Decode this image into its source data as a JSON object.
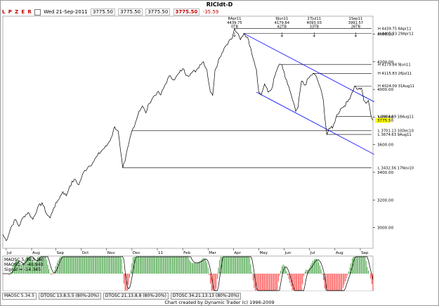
{
  "window": {
    "title": "RICIdt-D",
    "footer": "Chart created by Dynamic Trader  (c)  1996-2009"
  },
  "toolbar": {
    "buttons": [
      "L",
      "P",
      "Z",
      "E",
      "R"
    ],
    "date": "Wed 21-Sep-2011",
    "values": [
      "3775.50",
      "3775.50",
      "3775.50"
    ],
    "close": "3775.50",
    "change": "-35.59"
  },
  "tabs": [
    "MAOSC 5.34.5",
    "DTOSC 13.8.5.5 (80%-20%)",
    "DTOSC 21.13.8.8 (80%-20%)",
    "DTOSC 34.21.13.13 (80%-20%)"
  ],
  "colors": {
    "price": "#000000",
    "channel": "#0000ff",
    "last_price_bg": "#ffff00",
    "osc_up": "#008000",
    "osc_down": "#ff0000",
    "signal": "#000000"
  },
  "chart_data": {
    "type": "line",
    "title": "RICIdt-D",
    "ylim": [
      2850,
      4530
    ],
    "y_ticks": [
      3000,
      3200,
      3400,
      3600,
      3800,
      4000,
      4200,
      4400
    ],
    "y_tick_labels": [
      "3000.00",
      "3200.00",
      "3400.00",
      "3600.00",
      "3800.00",
      "4000.00",
      "4200.00",
      "4400.00"
    ],
    "last_price_label": "3775.50",
    "month_labels": [
      "Jul",
      "Aug",
      "Sep",
      "Oct",
      "Nov",
      "Dec",
      "11",
      "Feb",
      "Mar",
      "Apr",
      "May",
      "Jun",
      "Jul",
      "Aug",
      "Sep"
    ],
    "month_idx": [
      3,
      25,
      46,
      68,
      90,
      112,
      134,
      156,
      178,
      200,
      222,
      244,
      266,
      288,
      310
    ],
    "n_bars": 322,
    "price_pts": [
      [
        0,
        2950
      ],
      [
        3,
        2905
      ],
      [
        7,
        3000
      ],
      [
        11,
        3060
      ],
      [
        14,
        3010
      ],
      [
        18,
        3080
      ],
      [
        22,
        3110
      ],
      [
        26,
        3060
      ],
      [
        30,
        3140
      ],
      [
        34,
        3180
      ],
      [
        38,
        3100
      ],
      [
        41,
        3070
      ],
      [
        44,
        3140
      ],
      [
        48,
        3200
      ],
      [
        52,
        3260
      ],
      [
        55,
        3230
      ],
      [
        58,
        3300
      ],
      [
        62,
        3350
      ],
      [
        66,
        3310
      ],
      [
        70,
        3400
      ],
      [
        74,
        3440
      ],
      [
        78,
        3470
      ],
      [
        82,
        3520
      ],
      [
        86,
        3560
      ],
      [
        90,
        3590
      ],
      [
        94,
        3650
      ],
      [
        97,
        3730
      ],
      [
        100,
        3700
      ],
      [
        102,
        3560
      ],
      [
        104,
        3432
      ],
      [
        106,
        3480
      ],
      [
        109,
        3600
      ],
      [
        112,
        3700
      ],
      [
        115,
        3760
      ],
      [
        118,
        3840
      ],
      [
        121,
        3880
      ],
      [
        124,
        3830
      ],
      [
        127,
        3900
      ],
      [
        130,
        3940
      ],
      [
        134,
        3980
      ],
      [
        137,
        3960
      ],
      [
        141,
        4040
      ],
      [
        145,
        4100
      ],
      [
        149,
        4070
      ],
      [
        153,
        4120
      ],
      [
        156,
        4150
      ],
      [
        160,
        4100
      ],
      [
        164,
        4120
      ],
      [
        168,
        4140
      ],
      [
        171,
        4180
      ],
      [
        174,
        4200
      ],
      [
        177,
        4140
      ],
      [
        180,
        3980
      ],
      [
        182,
        3955
      ],
      [
        184,
        4140
      ],
      [
        188,
        4230
      ],
      [
        192,
        4300
      ],
      [
        196,
        4350
      ],
      [
        199,
        4370
      ],
      [
        201,
        4439
      ],
      [
        203,
        4410
      ],
      [
        206,
        4360
      ],
      [
        209,
        4405
      ],
      [
        212,
        4380
      ],
      [
        215,
        4300
      ],
      [
        218,
        4200
      ],
      [
        220,
        4140
      ],
      [
        222,
        3980
      ],
      [
        224,
        3960
      ],
      [
        227,
        4040
      ],
      [
        230,
        3980
      ],
      [
        233,
        4000
      ],
      [
        236,
        4100
      ],
      [
        239,
        4170
      ],
      [
        242,
        4180
      ],
      [
        245,
        4080
      ],
      [
        248,
        4020
      ],
      [
        251,
        3930
      ],
      [
        254,
        3840
      ],
      [
        256,
        3870
      ],
      [
        259,
        4060
      ],
      [
        262,
        4030
      ],
      [
        265,
        4080
      ],
      [
        269,
        4115
      ],
      [
        272,
        4090
      ],
      [
        275,
        4020
      ],
      [
        278,
        3920
      ],
      [
        280,
        3740
      ],
      [
        281,
        3674
      ],
      [
        283,
        3720
      ],
      [
        286,
        3720
      ],
      [
        289,
        3800
      ],
      [
        293,
        3860
      ],
      [
        296,
        3880
      ],
      [
        299,
        3910
      ],
      [
        302,
        3960
      ],
      [
        305,
        4024
      ],
      [
        308,
        4000
      ],
      [
        311,
        4010
      ],
      [
        313,
        3920
      ],
      [
        315,
        3900
      ],
      [
        317,
        3920
      ],
      [
        319,
        3820
      ],
      [
        321,
        3776
      ]
    ],
    "horizontal_levels": [
      {
        "label": "H 4439.75 8Apr11",
        "value": 4439.75,
        "start": 200
      },
      {
        "label": "H 4405.33 29Apr11",
        "value": 4405.33,
        "start": 209
      },
      {
        "label": "H 4179.84 9Jun11",
        "value": 4179.84,
        "start": 242
      },
      {
        "label": "H 4115.83 26Jul11",
        "value": 4115.83,
        "start": 269
      },
      {
        "label": "H 4024.09 31Aug11",
        "value": 4024.09,
        "start": 305
      },
      {
        "label": "L 3804.69 18Aug11",
        "value": 3804.69,
        "start": 289
      },
      {
        "label": "L 3701.13 10Dec10",
        "value": 3701.13,
        "start": 112
      },
      {
        "label": "L 3674.63 9Aug11",
        "value": 3674.63,
        "start": 281
      },
      {
        "label": "L 3432.56 17Nov10",
        "value": 3432.56,
        "start": 104
      }
    ],
    "top_annotations": [
      {
        "lines": [
          "8Apr11",
          "4439.75",
          "0TB"
        ],
        "index": 201
      },
      {
        "lines": [
          "9Jun11",
          "4179.84",
          "42TB"
        ],
        "index": 242
      },
      {
        "lines": [
          "27Jul11",
          "4093.03",
          "33TB"
        ],
        "index": 270
      },
      {
        "lines": [
          "1Sep11",
          "3991.57",
          "26TB"
        ],
        "index": 306
      }
    ],
    "channel": {
      "upper": [
        [
          209,
          4405
        ],
        [
          322,
          3910
        ]
      ],
      "lower": [
        [
          220,
          3980
        ],
        [
          322,
          3530
        ]
      ]
    },
    "oscillator": {
      "name": "MAOSC 5.34.5",
      "labels": [
        "MAOSC 5.34.5 (w)",
        "MAOSC = -48.940",
        "Signal = -14.345"
      ],
      "ylim": [
        -120,
        120
      ]
    }
  }
}
